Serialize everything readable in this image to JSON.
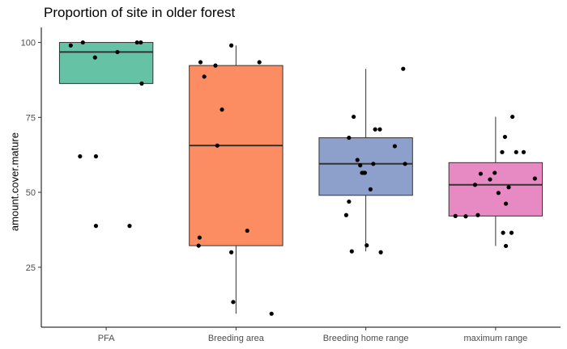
{
  "chart_data": {
    "type": "box",
    "title": "Proportion of site in older forest",
    "xlabel": "",
    "ylabel": "amount.cover.mature",
    "ylim": [
      5,
      105
    ],
    "yticks": [
      25,
      50,
      75,
      100
    ],
    "grid": false,
    "legend": "none",
    "categories": [
      "PFA",
      "Breeding area",
      "Breeding home range",
      "maximum range"
    ],
    "colors": [
      "#66c2a5",
      "#fc8d62",
      "#8da0cb",
      "#e78ac3"
    ],
    "boxes": [
      {
        "category": "PFA",
        "whisker_low": 86.3,
        "q1": 86.3,
        "median": 96.8,
        "q3": 100,
        "whisker_high": 100
      },
      {
        "category": "Breeding area",
        "whisker_low": 9.5,
        "q1": 32.2,
        "median": 65.6,
        "q3": 92.3,
        "whisker_high": 99.0
      },
      {
        "category": "Breeding home range",
        "whisker_low": 30.3,
        "q1": 49.0,
        "median": 59.5,
        "q3": 68.2,
        "whisker_high": 91.2
      },
      {
        "category": "maximum range",
        "whisker_low": 32.1,
        "q1": 42.1,
        "median": 52.5,
        "q3": 59.9,
        "whisker_high": 75.2
      }
    ],
    "points": [
      [
        {
          "x": -0.38,
          "y": 99.0
        },
        {
          "x": -0.25,
          "y": 100
        },
        {
          "x": -0.12,
          "y": 95.0
        },
        {
          "x": 0.12,
          "y": 96.8
        },
        {
          "x": 0.33,
          "y": 100
        },
        {
          "x": 0.37,
          "y": 100
        },
        {
          "x": 0.38,
          "y": 86.3
        },
        {
          "x": -0.28,
          "y": 62.0
        },
        {
          "x": -0.11,
          "y": 62.0
        },
        {
          "x": -0.11,
          "y": 38.8
        },
        {
          "x": 0.25,
          "y": 38.8
        }
      ],
      [
        {
          "x": -0.38,
          "y": 93.4
        },
        {
          "x": -0.34,
          "y": 88.6
        },
        {
          "x": -0.22,
          "y": 92.3
        },
        {
          "x": -0.05,
          "y": 99.0
        },
        {
          "x": 0.25,
          "y": 93.4
        },
        {
          "x": -0.15,
          "y": 77.6
        },
        {
          "x": -0.2,
          "y": 65.6
        },
        {
          "x": -0.39,
          "y": 34.9
        },
        {
          "x": -0.4,
          "y": 32.2
        },
        {
          "x": 0.12,
          "y": 37.2
        },
        {
          "x": -0.05,
          "y": 30.0
        },
        {
          "x": -0.03,
          "y": 13.4
        },
        {
          "x": 0.38,
          "y": 9.5
        }
      ],
      [
        {
          "x": -0.13,
          "y": 75.2
        },
        {
          "x": -0.18,
          "y": 68.2
        },
        {
          "x": -0.09,
          "y": 60.8
        },
        {
          "x": 0.1,
          "y": 71.0
        },
        {
          "x": 0.15,
          "y": 71.0
        },
        {
          "x": 0.31,
          "y": 65.4
        },
        {
          "x": 0.4,
          "y": 91.2
        },
        {
          "x": -0.06,
          "y": 59.0
        },
        {
          "x": 0.08,
          "y": 59.5
        },
        {
          "x": 0.42,
          "y": 59.5
        },
        {
          "x": -0.04,
          "y": 56.5
        },
        {
          "x": -0.02,
          "y": 56.5
        },
        {
          "x": -0.01,
          "y": 56.5
        },
        {
          "x": 0.05,
          "y": 51.0
        },
        {
          "x": -0.18,
          "y": 46.9
        },
        {
          "x": -0.21,
          "y": 42.4
        },
        {
          "x": 0.01,
          "y": 32.3
        },
        {
          "x": -0.15,
          "y": 30.3
        },
        {
          "x": 0.16,
          "y": 30.0
        }
      ],
      [
        {
          "x": 0.18,
          "y": 75.2
        },
        {
          "x": 0.1,
          "y": 68.5
        },
        {
          "x": 0.07,
          "y": 63.4
        },
        {
          "x": 0.22,
          "y": 63.4
        },
        {
          "x": 0.3,
          "y": 63.4
        },
        {
          "x": -0.16,
          "y": 56.2
        },
        {
          "x": -0.01,
          "y": 56.5
        },
        {
          "x": -0.06,
          "y": 54.3
        },
        {
          "x": 0.42,
          "y": 54.6
        },
        {
          "x": -0.22,
          "y": 52.5
        },
        {
          "x": 0.14,
          "y": 51.7
        },
        {
          "x": 0.03,
          "y": 49.8
        },
        {
          "x": 0.11,
          "y": 46.2
        },
        {
          "x": -0.43,
          "y": 42.1
        },
        {
          "x": -0.32,
          "y": 42.0
        },
        {
          "x": -0.19,
          "y": 42.4
        },
        {
          "x": 0.08,
          "y": 36.5
        },
        {
          "x": 0.17,
          "y": 36.5
        },
        {
          "x": 0.11,
          "y": 32.1
        }
      ]
    ]
  }
}
